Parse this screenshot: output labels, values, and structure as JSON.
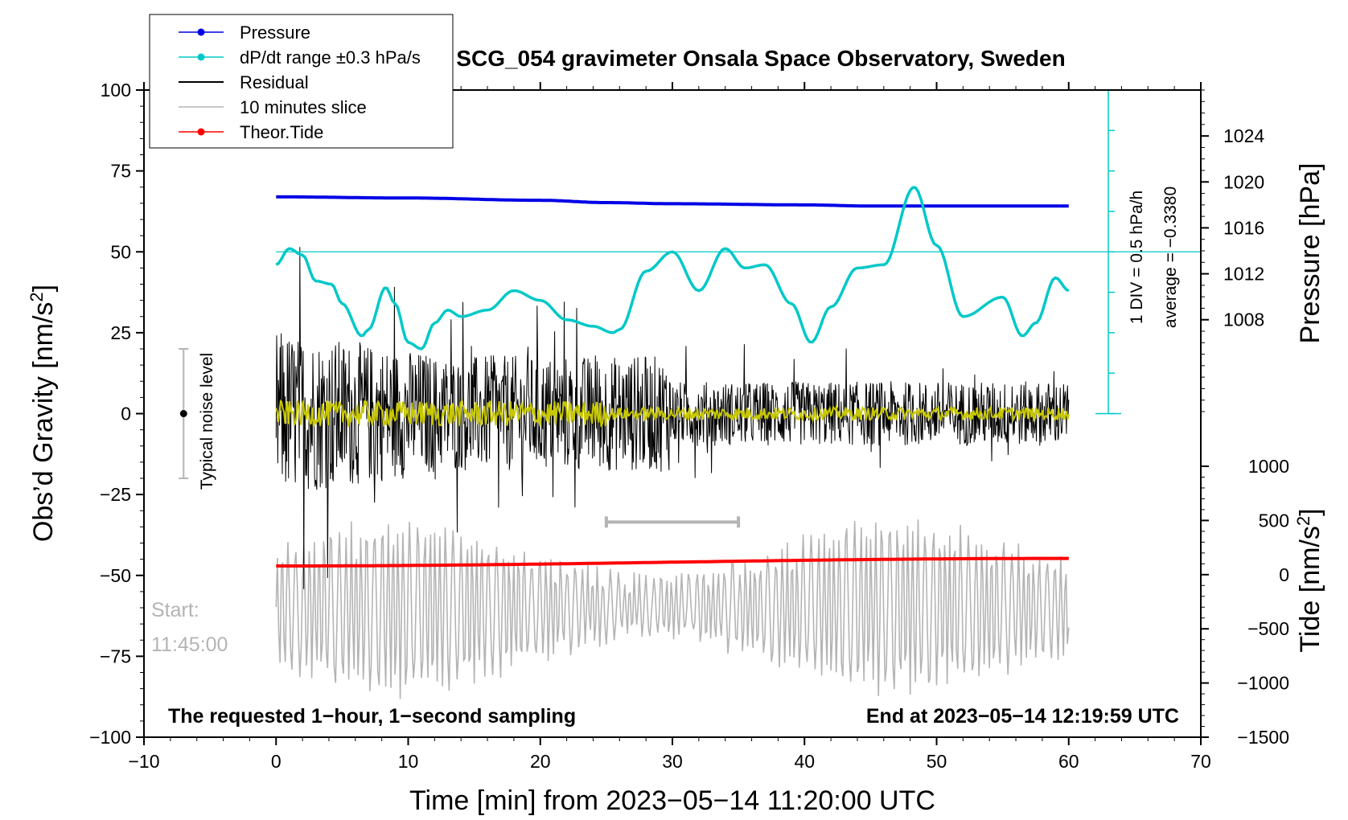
{
  "chart_data": {
    "type": "line",
    "title": "SCG_054 gravimeter Onsala Space Observatory, Sweden",
    "xlabel": "Time [min] from 2023−05−14 11:20:00 UTC",
    "ylabel_left": "Obs’d Gravity [nm/s",
    "ylabel_left_sup": "2",
    "ylabel_left_end": "]",
    "ylabel_right_top": "Pressure [hPa]",
    "ylabel_right_bottom": "Tide [nm/s",
    "ylabel_right_bottom_sup": "2",
    "ylabel_right_bottom_end": "]",
    "xlim": [
      -10,
      70
    ],
    "ylim": [
      -100,
      100
    ],
    "pressure_lim": [
      1000,
      1028
    ],
    "tide_lim": [
      -1500,
      1000
    ],
    "x_ticks": [
      "−10",
      "0",
      "10",
      "20",
      "30",
      "40",
      "50",
      "60",
      "70"
    ],
    "x_tick_values": [
      -10,
      0,
      10,
      20,
      30,
      40,
      50,
      60,
      70
    ],
    "y_ticks": [
      "100",
      "75",
      "50",
      "25",
      "0",
      "−25",
      "−50",
      "−75",
      "−100"
    ],
    "y_tick_values": [
      100,
      75,
      50,
      25,
      0,
      -25,
      -50,
      -75,
      -100
    ],
    "pressure_ticks": [
      "1024",
      "1020",
      "1016",
      "1012",
      "1008"
    ],
    "pressure_tick_values": [
      1024,
      1020,
      1016,
      1012,
      1008
    ],
    "tide_ticks": [
      "1000",
      "500",
      "0",
      "−500",
      "−1000",
      "−1500"
    ],
    "tide_tick_values": [
      1000,
      500,
      0,
      -500,
      -1000,
      -1500
    ],
    "legend": [
      {
        "label": "Pressure",
        "color": "#0000e6",
        "marker": true
      },
      {
        "label": "dP/dt range ±0.3 hPa/s",
        "color": "#00c8c8",
        "marker": true
      },
      {
        "label": "Residual",
        "color": "#000000",
        "marker": false
      },
      {
        "label": "10 minutes slice",
        "color": "#b4b4b4",
        "marker": false
      },
      {
        "label": "Theor.Tide",
        "color": "#ff0000",
        "marker": true
      }
    ],
    "series": [
      {
        "name": "Pressure",
        "color": "#0000e6",
        "axis": "pressure",
        "x": [
          0,
          10,
          20,
          25,
          30,
          40,
          45,
          50,
          55,
          60
        ],
        "values": [
          1018.7,
          1018.6,
          1018.4,
          1018.2,
          1018.1,
          1018.0,
          1017.9,
          1017.9,
          1017.9,
          1017.9
        ]
      },
      {
        "name": "dP/dt",
        "color": "#00c8c8",
        "axis": "gravity",
        "x": [
          0,
          1,
          2,
          3,
          4.2,
          5,
          6.5,
          7,
          8.3,
          9,
          10,
          11,
          12,
          13,
          14,
          16,
          18,
          20,
          22,
          24,
          25.5,
          26,
          28,
          30,
          32,
          34,
          35.5,
          37,
          39,
          40.5,
          42,
          44,
          46,
          48.3,
          50,
          52,
          55,
          56.5,
          57.5,
          59,
          60
        ],
        "values": [
          46,
          51,
          49,
          41,
          40,
          34,
          24,
          26,
          39,
          34,
          22,
          20,
          28,
          32,
          30,
          32,
          38,
          35,
          29,
          27,
          25,
          26,
          44,
          50,
          38,
          51,
          45,
          46,
          34,
          22,
          33,
          45,
          46,
          70,
          52,
          30,
          36,
          24,
          28,
          42,
          38
        ]
      },
      {
        "name": "Theor.Tide",
        "color": "#ff0000",
        "axis": "tide",
        "x": [
          0,
          60
        ],
        "values": [
          80,
          150
        ]
      }
    ],
    "dpdt_reference_line": 50,
    "residual": {
      "name": "Residual",
      "color": "#000000",
      "x_range": [
        0,
        60
      ],
      "approx_amplitude": 30
    },
    "filtered_residual_color": "#c8c800",
    "ten_minute_slice": {
      "name": "10 minutes slice",
      "color": "#b4b4b4",
      "x_range": [
        0,
        60
      ],
      "bar_start": 25,
      "bar_end": 35,
      "bar_y": -33.5
    },
    "noise_level": {
      "label": "Typical noise level",
      "x": -7,
      "center": 0,
      "low": -20,
      "high": 20
    },
    "dpdt_scale": {
      "div_label": "1 DIV = 0.5 hPa/h",
      "average_label": "average = −0.3380",
      "x": 63,
      "top": 100,
      "bottom": 0
    },
    "annotations": {
      "start_label": "Start:",
      "start_time": "11:45:00",
      "bottom_left": "The requested 1−hour, 1−second sampling",
      "bottom_right": "End at 2023−05−14 12:19:59 UTC"
    }
  }
}
